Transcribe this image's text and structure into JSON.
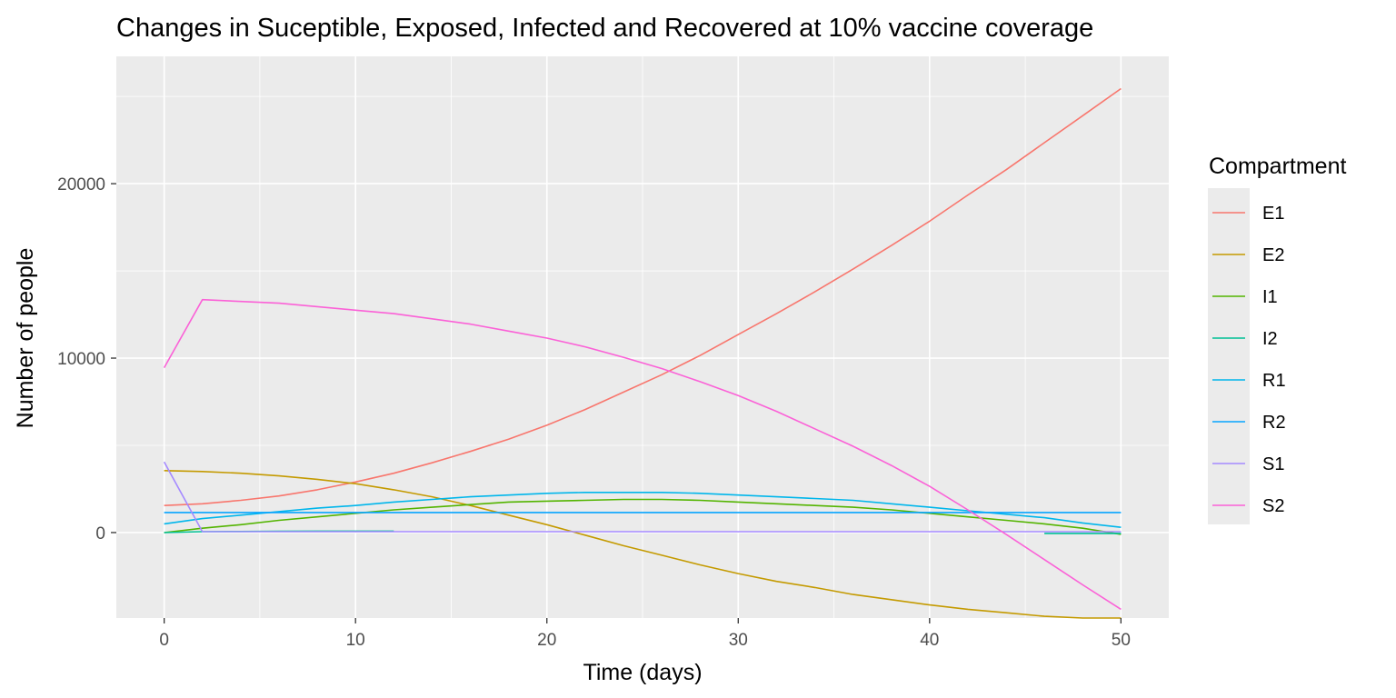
{
  "chart_data": {
    "type": "line",
    "title": "Changes in Suceptible, Exposed, Infected and Recovered at 10% vaccine coverage",
    "xlabel": "Time (days)",
    "ylabel": "Number of people",
    "xlim": [
      -2.5,
      52.5
    ],
    "ylim": [
      -4900,
      27300
    ],
    "x_ticks": [
      0,
      10,
      20,
      30,
      40,
      50
    ],
    "y_ticks": [
      0,
      10000,
      20000
    ],
    "x_tick_labels": [
      "0",
      "10",
      "20",
      "30",
      "40",
      "50"
    ],
    "y_tick_labels": [
      "0",
      "10000",
      "20000"
    ],
    "grid": true,
    "legend": {
      "title": "Compartment",
      "position": "right"
    },
    "x": [
      0,
      2,
      4,
      6,
      8,
      10,
      12,
      14,
      16,
      18,
      20,
      22,
      24,
      26,
      28,
      30,
      32,
      34,
      36,
      38,
      40,
      42,
      44,
      46,
      48,
      50
    ],
    "series": [
      {
        "name": "E1",
        "color": "#F8766D",
        "values": [
          1550,
          1650,
          1850,
          2100,
          2450,
          2900,
          3400,
          4000,
          4650,
          5350,
          6150,
          7050,
          8050,
          9050,
          10150,
          11350,
          12550,
          13800,
          15100,
          16450,
          17850,
          19350,
          20800,
          22350,
          23900,
          25450
        ]
      },
      {
        "name": "E2",
        "color": "#C49A00",
        "values": [
          3550,
          3500,
          3400,
          3250,
          3050,
          2800,
          2450,
          2050,
          1550,
          1000,
          450,
          -150,
          -750,
          -1300,
          -1850,
          -2350,
          -2800,
          -3150,
          -3550,
          -3850,
          -4150,
          -4400,
          -4600,
          -4800,
          -4900,
          -4900
        ]
      },
      {
        "name": "I1",
        "color": "#53B400",
        "values": [
          0,
          250,
          450,
          700,
          900,
          1100,
          1300,
          1450,
          1600,
          1750,
          1800,
          1850,
          1900,
          1900,
          1850,
          1750,
          1650,
          1550,
          1450,
          1300,
          1100,
          900,
          700,
          500,
          250,
          -100
        ]
      },
      {
        "name": "I2",
        "color": "#00C094",
        "values": [
          0,
          50,
          60,
          70,
          80,
          80,
          80,
          null,
          null,
          null,
          null,
          null,
          null,
          null,
          null,
          null,
          null,
          null,
          null,
          null,
          null,
          null,
          null,
          -50,
          -50,
          -50
        ]
      },
      {
        "name": "R1",
        "color": "#00B6EB",
        "values": [
          500,
          800,
          1000,
          1200,
          1400,
          1550,
          1750,
          1900,
          2050,
          2150,
          2250,
          2300,
          2300,
          2300,
          2250,
          2150,
          2050,
          1950,
          1850,
          1650,
          1450,
          1250,
          1050,
          850,
          550,
          300
        ]
      },
      {
        "name": "R2",
        "color": "#06A4FF",
        "values": [
          1150,
          1150,
          1150,
          1150,
          1150,
          1150,
          1150,
          1150,
          1150,
          1150,
          1150,
          1150,
          1150,
          1150,
          1150,
          1150,
          1150,
          1150,
          1150,
          1150,
          1150,
          1150,
          1150,
          1150,
          1150,
          1150
        ]
      },
      {
        "name": "S1",
        "color": "#A58AFF",
        "values": [
          4050,
          50,
          50,
          50,
          50,
          50,
          50,
          50,
          50,
          50,
          50,
          50,
          50,
          50,
          50,
          50,
          50,
          50,
          50,
          50,
          50,
          50,
          50,
          50,
          50,
          50
        ]
      },
      {
        "name": "S2",
        "color": "#FB61D7",
        "values": [
          9450,
          13350,
          13250,
          13150,
          12950,
          12750,
          12550,
          12250,
          11950,
          11550,
          11150,
          10650,
          10050,
          9400,
          8650,
          7850,
          6950,
          5950,
          4950,
          3850,
          2650,
          1300,
          -100,
          -1550,
          -3000,
          -4400
        ]
      }
    ]
  }
}
